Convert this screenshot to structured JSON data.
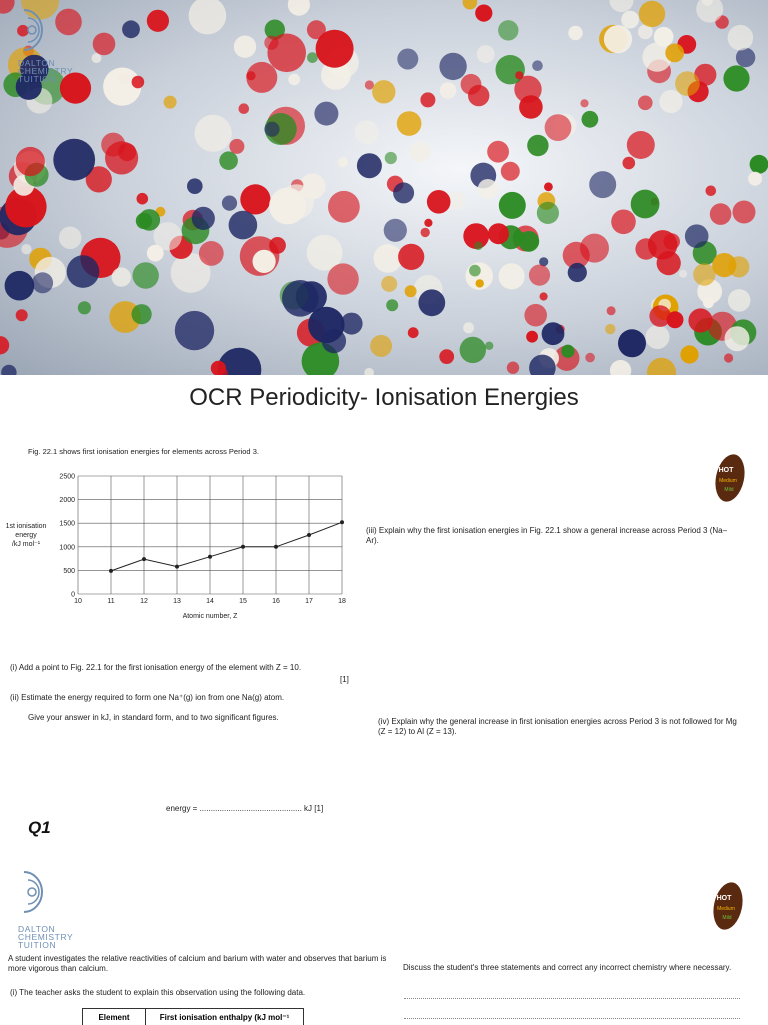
{
  "logo": {
    "line1": "DALTON",
    "line2": "CHEMISTRY",
    "line3": "TUITION"
  },
  "title": "OCR Periodicity- Ionisation Energies",
  "figure_caption": "Fig. 22.1 shows first ionisation energies for elements across Period 3.",
  "chart_data": {
    "type": "line",
    "x_label": "Atomic number, Z",
    "y_label": [
      "1st ionisation",
      "energy",
      "/kJ mol⁻¹"
    ],
    "x": [
      11,
      12,
      13,
      14,
      15,
      16,
      17,
      18
    ],
    "series": [
      {
        "color": "#222222",
        "values": [
          490,
          740,
          580,
          790,
          1000,
          1000,
          1250,
          1520
        ]
      }
    ],
    "xlim": [
      10,
      18
    ],
    "xticks": [
      10,
      11,
      12,
      13,
      14,
      15,
      16,
      17,
      18
    ],
    "ylim": [
      0,
      2500
    ],
    "yticks": [
      0,
      500,
      1000,
      1500,
      2000,
      2500
    ],
    "grid": true
  },
  "questions": {
    "part_i": "(i)   Add a point to Fig. 22.1 for the first ionisation energy of the element with Z = 10.",
    "part_i_mark": "[1]",
    "part_ii": "(ii)   Estimate the energy required to form one Na⁺(g) ion from one Na(g) atom.",
    "part_ii_note": "Give your answer in kJ, in standard form, and to two significant figures.",
    "part_ii_answer": "energy = .............................................. kJ [1]",
    "part_iii": "(iii)   Explain why the first ionisation energies in Fig. 22.1 show a general increase across Period 3 (Na–Ar).",
    "part_iv": "(iv)   Explain why the general increase in first ionisation energies across Period 3 is not followed for Mg (Z = 12) to Al (Z = 13)."
  },
  "question_label": "Q1",
  "badge": {
    "hot": "HOT",
    "medium": "Medium",
    "mild": "Mild"
  },
  "q2": {
    "intro": "A student investigates the relative reactivities of calcium and barium with water and observes that barium is more vigorous than calcium.",
    "part_i": "(i)   The teacher asks the student to explain this observation using the following data.",
    "table_headers": [
      "Element",
      "First ionisation enthalpy (kJ mol⁻¹"
    ],
    "discuss": "Discuss the student's three statements and correct any incorrect chemistry where necessary."
  }
}
